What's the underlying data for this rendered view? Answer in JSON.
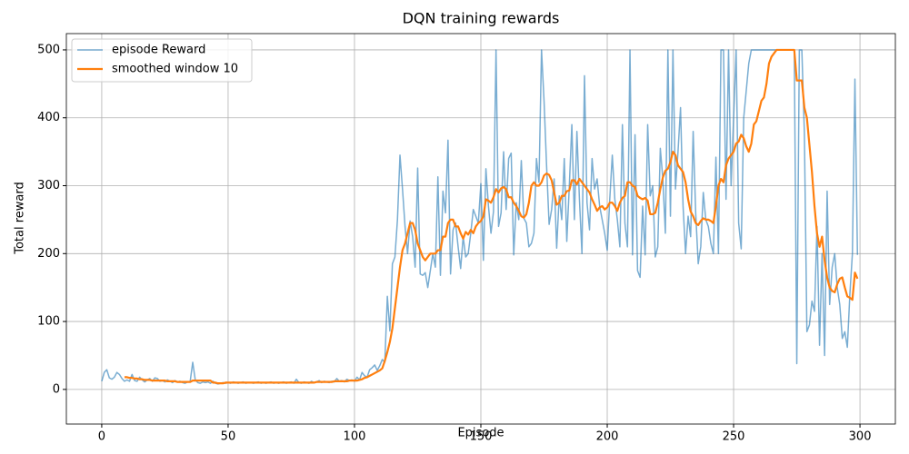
{
  "chart_data": {
    "type": "line",
    "title": "DQN training rewards",
    "x_label": "Episode",
    "y_label": "Total reward",
    "x": [
      0,
      1,
      2,
      3,
      4,
      5,
      6,
      7,
      8,
      9,
      10,
      11,
      12,
      13,
      14,
      15,
      16,
      17,
      18,
      19,
      20,
      21,
      22,
      23,
      24,
      25,
      26,
      27,
      28,
      29,
      30,
      31,
      32,
      33,
      34,
      35,
      36,
      37,
      38,
      39,
      40,
      41,
      42,
      43,
      44,
      45,
      46,
      47,
      48,
      49,
      50,
      51,
      52,
      53,
      54,
      55,
      56,
      57,
      58,
      59,
      60,
      61,
      62,
      63,
      64,
      65,
      66,
      67,
      68,
      69,
      70,
      71,
      72,
      73,
      74,
      75,
      76,
      77,
      78,
      79,
      80,
      81,
      82,
      83,
      84,
      85,
      86,
      87,
      88,
      89,
      90,
      91,
      92,
      93,
      94,
      95,
      96,
      97,
      98,
      99,
      100,
      101,
      102,
      103,
      104,
      105,
      106,
      107,
      108,
      109,
      110,
      111,
      112,
      113,
      114,
      115,
      116,
      117,
      118,
      119,
      120,
      121,
      122,
      123,
      124,
      125,
      126,
      127,
      128,
      129,
      130,
      131,
      132,
      133,
      134,
      135,
      136,
      137,
      138,
      139,
      140,
      141,
      142,
      143,
      144,
      145,
      146,
      147,
      148,
      149,
      150,
      151,
      152,
      153,
      154,
      155,
      156,
      157,
      158,
      159,
      160,
      161,
      162,
      163,
      164,
      165,
      166,
      167,
      168,
      169,
      170,
      171,
      172,
      173,
      174,
      175,
      176,
      177,
      178,
      179,
      180,
      181,
      182,
      183,
      184,
      185,
      186,
      187,
      188,
      189,
      190,
      191,
      192,
      193,
      194,
      195,
      196,
      197,
      198,
      199,
      200,
      201,
      202,
      203,
      204,
      205,
      206,
      207,
      208,
      209,
      210,
      211,
      212,
      213,
      214,
      215,
      216,
      217,
      218,
      219,
      220,
      221,
      222,
      223,
      224,
      225,
      226,
      227,
      228,
      229,
      230,
      231,
      232,
      233,
      234,
      235,
      236,
      237,
      238,
      239,
      240,
      241,
      242,
      243,
      244,
      245,
      246,
      247,
      248,
      249,
      250,
      251,
      252,
      253,
      254,
      255,
      256,
      257,
      258,
      259,
      260,
      261,
      262,
      263,
      264,
      265,
      266,
      267,
      268,
      269,
      270,
      271,
      272,
      273,
      274,
      275,
      276,
      277,
      278,
      279,
      280,
      281,
      282,
      283,
      284,
      285,
      286,
      287,
      288,
      289,
      290,
      291,
      292,
      293,
      294,
      295,
      296,
      297,
      298,
      299
    ],
    "series": [
      {
        "name": "episode Reward",
        "color": "#1f77b4",
        "values": [
          12,
          25,
          29,
          17,
          15,
          18,
          25,
          22,
          16,
          12,
          14,
          12,
          22,
          13,
          12,
          18,
          14,
          11,
          14,
          16,
          12,
          17,
          16,
          12,
          13,
          11,
          14,
          12,
          10,
          13,
          11,
          12,
          10,
          9,
          11,
          12,
          40,
          14,
          10,
          9,
          11,
          10,
          11,
          9,
          12,
          9,
          8,
          9,
          10,
          9,
          10,
          9,
          11,
          10,
          9,
          10,
          11,
          9,
          10,
          10,
          9,
          10,
          11,
          9,
          10,
          9,
          10,
          11,
          9,
          10,
          9,
          10,
          11,
          9,
          10,
          11,
          9,
          15,
          10,
          9,
          11,
          10,
          9,
          12,
          10,
          11,
          13,
          10,
          12,
          11,
          10,
          12,
          11,
          16,
          12,
          13,
          11,
          15,
          13,
          14,
          12,
          18,
          14,
          25,
          20,
          18,
          29,
          32,
          36,
          28,
          35,
          44,
          40,
          137,
          86,
          185,
          195,
          250,
          345,
          295,
          240,
          200,
          248,
          225,
          180,
          326,
          170,
          168,
          172,
          150,
          175,
          200,
          180,
          313,
          168,
          292,
          260,
          367,
          170,
          235,
          245,
          210,
          178,
          225,
          195,
          200,
          230,
          265,
          255,
          245,
          303,
          190,
          325,
          270,
          230,
          262,
          500,
          240,
          260,
          350,
          265,
          340,
          348,
          198,
          275,
          250,
          337,
          252,
          245,
          210,
          215,
          230,
          340,
          305,
          500,
          425,
          330,
          243,
          265,
          310,
          208,
          285,
          250,
          340,
          218,
          300,
          390,
          250,
          380,
          280,
          200,
          462,
          275,
          235,
          340,
          295,
          310,
          270,
          250,
          230,
          205,
          280,
          345,
          280,
          250,
          210,
          390,
          245,
          210,
          500,
          198,
          375,
          175,
          165,
          270,
          198,
          390,
          285,
          300,
          195,
          210,
          355,
          310,
          230,
          500,
          255,
          500,
          295,
          350,
          415,
          270,
          200,
          255,
          225,
          380,
          260,
          185,
          210,
          290,
          250,
          240,
          215,
          200,
          342,
          200,
          500,
          500,
          280,
          500,
          300,
          400,
          500,
          245,
          207,
          400,
          440,
          480,
          500,
          500,
          500,
          500,
          500,
          500,
          500,
          500,
          500,
          500,
          500,
          500,
          500,
          500,
          500,
          500,
          500,
          500,
          38,
          500,
          500,
          378,
          85,
          95,
          130,
          115,
          240,
          65,
          200,
          50,
          292,
          125,
          180,
          200,
          150,
          125,
          75,
          85,
          62,
          140,
          200,
          457,
          198
        ]
      },
      {
        "name": "smoothed window 10",
        "color": "#ff7f0e",
        "values": [
          null,
          null,
          null,
          null,
          null,
          null,
          null,
          null,
          null,
          18,
          18,
          17,
          17,
          16,
          16,
          15,
          15,
          14,
          14,
          14,
          13,
          13,
          13,
          13,
          13,
          13,
          12,
          12,
          12,
          12,
          11,
          11,
          11,
          11,
          11,
          11,
          13,
          13,
          13,
          13,
          13,
          13,
          13,
          13,
          10,
          10,
          9,
          9,
          9,
          10,
          10,
          10,
          10,
          10,
          10,
          10,
          10,
          10,
          10,
          10,
          10,
          10,
          10,
          10,
          10,
          10,
          10,
          10,
          10,
          10,
          10,
          10,
          10,
          10,
          10,
          10,
          10,
          10,
          10,
          10,
          10,
          10,
          10,
          10,
          10,
          11,
          11,
          11,
          11,
          11,
          11,
          11,
          12,
          12,
          12,
          12,
          12,
          12,
          13,
          13,
          13,
          13,
          14,
          15,
          17,
          18,
          20,
          22,
          24,
          26,
          28,
          31,
          42,
          55,
          70,
          90,
          120,
          150,
          180,
          205,
          215,
          230,
          245,
          245,
          235,
          215,
          205,
          195,
          190,
          195,
          200,
          200,
          200,
          205,
          205,
          225,
          225,
          245,
          250,
          250,
          240,
          240,
          230,
          222,
          232,
          228,
          235,
          230,
          240,
          245,
          248,
          255,
          280,
          278,
          275,
          283,
          295,
          290,
          296,
          298,
          295,
          283,
          283,
          275,
          270,
          263,
          255,
          253,
          258,
          275,
          300,
          305,
          300,
          300,
          305,
          315,
          318,
          316,
          308,
          290,
          272,
          275,
          285,
          285,
          292,
          293,
          308,
          308,
          302,
          310,
          305,
          300,
          295,
          290,
          280,
          272,
          263,
          268,
          270,
          265,
          268,
          275,
          275,
          270,
          263,
          275,
          282,
          285,
          305,
          305,
          300,
          298,
          285,
          282,
          280,
          282,
          278,
          258,
          258,
          260,
          275,
          295,
          312,
          322,
          325,
          335,
          350,
          345,
          330,
          325,
          320,
          305,
          280,
          262,
          255,
          245,
          242,
          248,
          252,
          250,
          250,
          248,
          245,
          270,
          300,
          310,
          305,
          330,
          340,
          345,
          350,
          362,
          365,
          375,
          370,
          358,
          350,
          362,
          390,
          395,
          410,
          425,
          430,
          450,
          480,
          490,
          495,
          500,
          500,
          500,
          500,
          500,
          500,
          500,
          500,
          455,
          455,
          455,
          415,
          400,
          360,
          320,
          270,
          230,
          210,
          225,
          190,
          165,
          150,
          145,
          143,
          155,
          163,
          165,
          150,
          137,
          135,
          132,
          172,
          163
        ]
      }
    ],
    "xlim": [
      -14,
      314
    ],
    "xticks": [
      0,
      50,
      100,
      150,
      200,
      250,
      300
    ],
    "ylim": [
      -51,
      524
    ],
    "yticks": [
      0,
      100,
      200,
      300,
      400,
      500
    ],
    "grid": true,
    "legend": "upper left"
  }
}
